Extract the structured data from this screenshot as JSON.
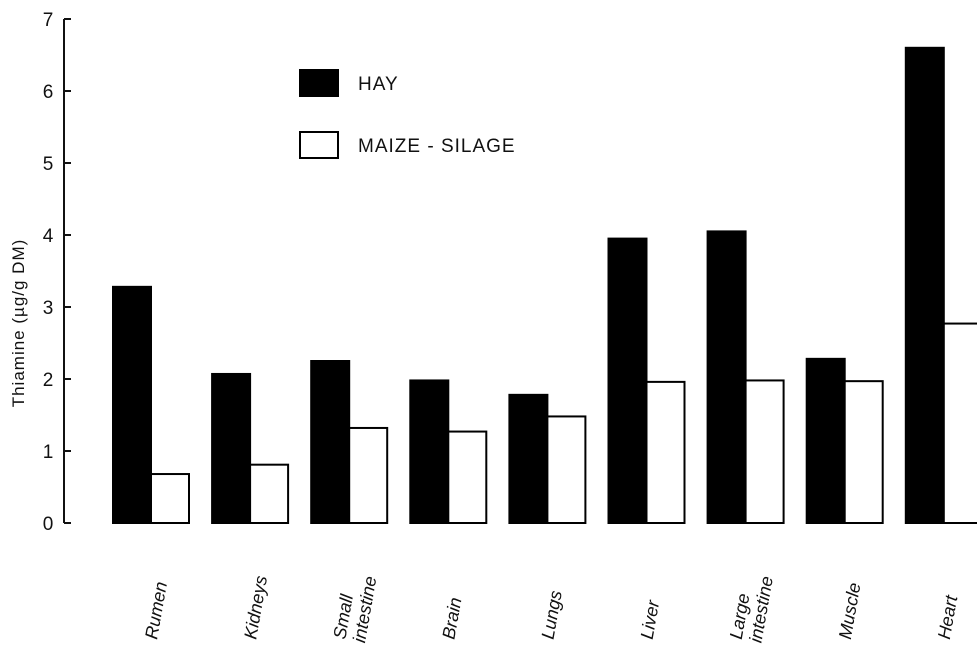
{
  "chart_data": {
    "type": "bar",
    "title": "",
    "xlabel": "",
    "ylabel": "Thiamine (µg/g DM)",
    "ylim": [
      0,
      7
    ],
    "yticks": [
      "0",
      "1",
      "2",
      "3",
      "4",
      "5",
      "6",
      "7"
    ],
    "categories": [
      [
        "Rumen"
      ],
      [
        "Kidneys"
      ],
      [
        "Small",
        "intestine"
      ],
      [
        "Brain"
      ],
      [
        "Lungs"
      ],
      [
        "Liver"
      ],
      [
        "Large",
        "intestine"
      ],
      [
        "Muscle"
      ],
      [
        "Heart"
      ]
    ],
    "series": [
      {
        "name": "HAY",
        "color": "#000000",
        "values": [
          3.28,
          2.07,
          2.25,
          1.98,
          1.78,
          3.95,
          4.05,
          2.28,
          6.6
        ]
      },
      {
        "name": "MAIZE - SILAGE",
        "color": "#ffffff",
        "values": [
          0.68,
          0.81,
          1.32,
          1.27,
          1.48,
          1.96,
          1.98,
          1.97,
          2.77
        ]
      }
    ],
    "legend_position": "top-left",
    "grid": false
  }
}
